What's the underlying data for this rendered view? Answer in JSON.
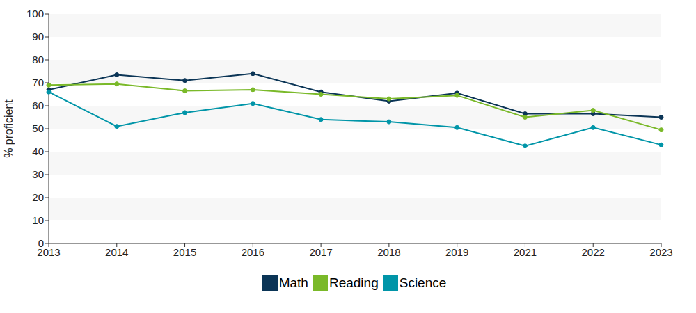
{
  "chart_data": {
    "type": "line",
    "ylabel": "% proficient",
    "categories": [
      "2013",
      "2014",
      "2015",
      "2016",
      "2017",
      "2018",
      "2019",
      "2021",
      "2022",
      "2023"
    ],
    "series": [
      {
        "name": "Math",
        "color": "#0b3556",
        "values": [
          67,
          73.5,
          71,
          74,
          66,
          62,
          65.5,
          56.5,
          56.5,
          55
        ]
      },
      {
        "name": "Reading",
        "color": "#7ab929",
        "values": [
          69,
          69.5,
          66.5,
          67,
          65,
          63,
          64.5,
          55,
          58,
          49.5
        ]
      },
      {
        "name": "Science",
        "color": "#0095a8",
        "values": [
          66,
          51,
          57,
          61,
          54,
          53,
          50.5,
          42.5,
          50.5,
          43
        ]
      }
    ],
    "ylim": [
      0,
      100
    ],
    "yticks": [
      0,
      10,
      20,
      30,
      40,
      50,
      60,
      70,
      80,
      90,
      100
    ],
    "grid": true,
    "legend": "bottom",
    "marker": "circle"
  }
}
